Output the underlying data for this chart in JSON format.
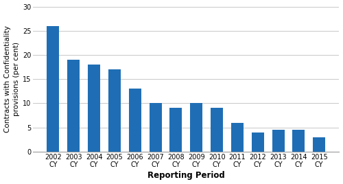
{
  "categories_top": [
    "2002",
    "2003",
    "2004",
    "2005",
    "2006",
    "2007",
    "2008",
    "2009",
    "2010",
    "2011",
    "2012",
    "2013",
    "2014",
    "2015"
  ],
  "categories_bottom": [
    "CY",
    "CY",
    "CY",
    "CY",
    "CY",
    "CY",
    "CY",
    "CY",
    "CY",
    "CY",
    "CY",
    "CY",
    "CY",
    "CY"
  ],
  "values": [
    26,
    19,
    18,
    17,
    13,
    10,
    9,
    10,
    9,
    6,
    4,
    4.5,
    4.5,
    3
  ],
  "bar_color": "#1f6eb5",
  "ylabel_line1": "Contracts with Confidentiality",
  "ylabel_line2": "provisions (per cent)",
  "xlabel": "Reporting Period",
  "ylim": [
    0,
    30
  ],
  "yticks": [
    0,
    5,
    10,
    15,
    20,
    25,
    30
  ],
  "background_color": "#ffffff",
  "grid_color": "#c8c8c8",
  "ylabel_fontsize": 7.5,
  "xlabel_fontsize": 8.5,
  "tick_fontsize": 7,
  "bar_width": 0.6
}
